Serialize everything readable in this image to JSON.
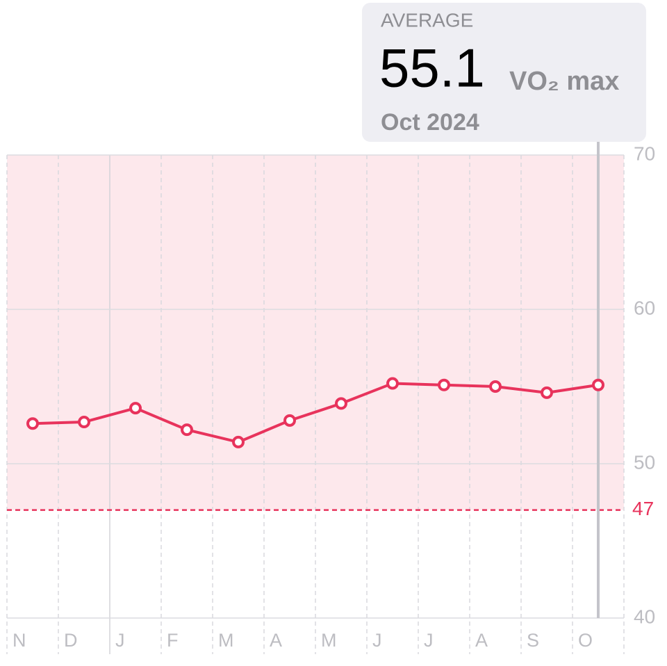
{
  "chart_data": {
    "type": "line",
    "categories": [
      "N",
      "D",
      "J",
      "F",
      "M",
      "A",
      "M",
      "J",
      "J",
      "A",
      "S",
      "O"
    ],
    "values": [
      52.6,
      52.7,
      53.6,
      52.2,
      51.4,
      52.8,
      53.9,
      55.2,
      55.1,
      55.0,
      54.6,
      55.1
    ],
    "color": "#e8335c",
    "band_color": "#fde8ec",
    "threshold": 47,
    "ylim": [
      40,
      70
    ],
    "yticks": [
      40,
      50,
      60,
      70
    ],
    "grid": true,
    "tooltip": {
      "label": "AVERAGE",
      "value": 55.1,
      "unit": "VO₂ max",
      "date": "Oct 2024"
    }
  }
}
